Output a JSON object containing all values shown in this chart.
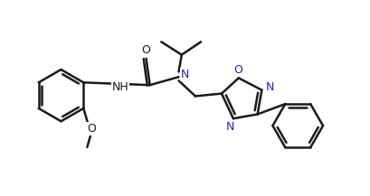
{
  "bg_color": "#ffffff",
  "line_color": "#1a1a1a",
  "heteroatom_color": "#2222bb",
  "bond_width": 1.8,
  "fig_width": 4.09,
  "fig_height": 2.17,
  "dpi": 100,
  "xlim": [
    0,
    10.0
  ],
  "ylim": [
    0,
    5.3
  ]
}
